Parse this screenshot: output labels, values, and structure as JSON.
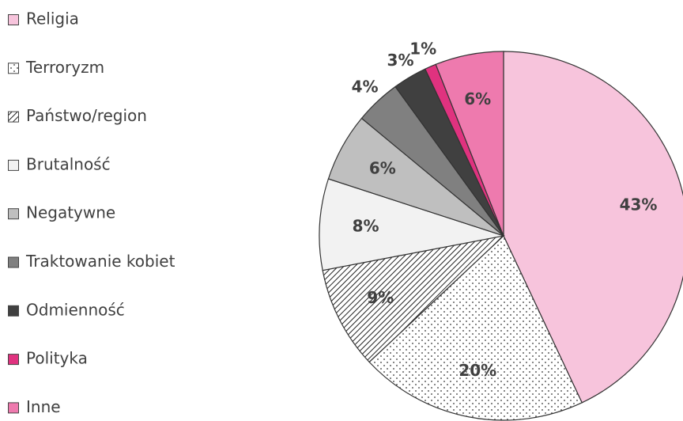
{
  "chart_data": {
    "type": "pie",
    "categories": [
      "Religia",
      "Terroryzm",
      "Państwo/region",
      "Brutalność",
      "Negatywne",
      "Traktowanie kobiet",
      "Odmienność",
      "Polityka",
      "Inne"
    ],
    "values": [
      43,
      20,
      9,
      8,
      6,
      4,
      3,
      1,
      6
    ],
    "value_labels": [
      "43%",
      "20%",
      "9%",
      "8%",
      "6%",
      "4%",
      "3%",
      "1%",
      "6%"
    ],
    "colors": [
      "#f7c4dc",
      "#ffffff",
      "#ffffff",
      "#f2f2f2",
      "#bfbfbf",
      "#808080",
      "#404040",
      "#e0327f",
      "#ee7aae"
    ],
    "fills": [
      "solid",
      "dots",
      "hatch",
      "solid",
      "solid",
      "solid",
      "solid",
      "solid",
      "solid"
    ],
    "legend": "left"
  }
}
